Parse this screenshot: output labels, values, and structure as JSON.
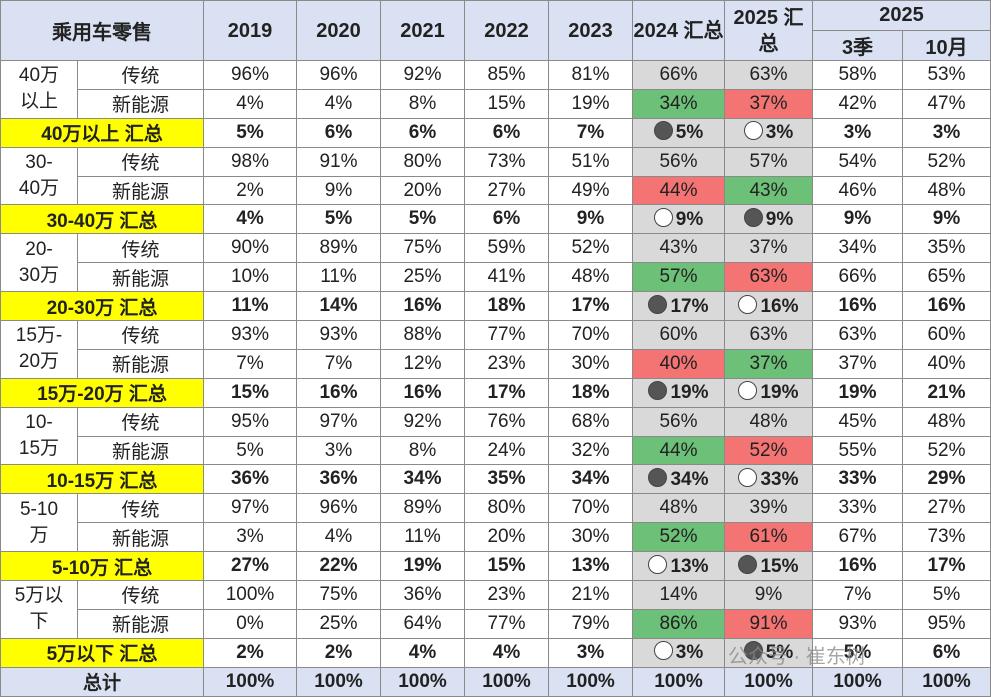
{
  "header": {
    "title": "乘用车零售",
    "columns": [
      "2019",
      "2020",
      "2021",
      "2022",
      "2023",
      "2024 汇总",
      "2025 汇总"
    ],
    "group": "2025",
    "subcolumns": [
      "3季",
      "10月"
    ]
  },
  "groups": [
    {
      "label_lines": [
        "40万",
        "以上"
      ],
      "rows": [
        {
          "type": "传统",
          "cells": [
            "96%",
            "96%",
            "92%",
            "85%",
            "81%",
            "66%",
            "63%",
            "58%",
            "53%"
          ]
        },
        {
          "type": "新能源",
          "cells": [
            "4%",
            "4%",
            "8%",
            "15%",
            "19%",
            "34%",
            "37%",
            "42%",
            "47%"
          ],
          "highlight": [
            "green",
            "red"
          ]
        }
      ],
      "summary": {
        "label": "40万以上 汇总",
        "cells": [
          "5%",
          "6%",
          "6%",
          "6%",
          "7%",
          "5%",
          "3%",
          "3%",
          "3%"
        ],
        "markers": [
          "filled",
          "hollow"
        ]
      }
    },
    {
      "label_lines": [
        "30-",
        "40万"
      ],
      "rows": [
        {
          "type": "传统",
          "cells": [
            "98%",
            "91%",
            "80%",
            "73%",
            "51%",
            "56%",
            "57%",
            "54%",
            "52%"
          ]
        },
        {
          "type": "新能源",
          "cells": [
            "2%",
            "9%",
            "20%",
            "27%",
            "49%",
            "44%",
            "43%",
            "46%",
            "48%"
          ],
          "highlight": [
            "red",
            "green"
          ]
        }
      ],
      "summary": {
        "label": "30-40万 汇总",
        "cells": [
          "4%",
          "5%",
          "5%",
          "6%",
          "9%",
          "9%",
          "9%",
          "9%",
          "9%"
        ],
        "markers": [
          "hollow",
          "filled"
        ]
      }
    },
    {
      "label_lines": [
        "20-",
        "30万"
      ],
      "rows": [
        {
          "type": "传统",
          "cells": [
            "90%",
            "89%",
            "75%",
            "59%",
            "52%",
            "43%",
            "37%",
            "34%",
            "35%"
          ]
        },
        {
          "type": "新能源",
          "cells": [
            "10%",
            "11%",
            "25%",
            "41%",
            "48%",
            "57%",
            "63%",
            "66%",
            "65%"
          ],
          "highlight": [
            "green",
            "red"
          ]
        }
      ],
      "summary": {
        "label": "20-30万 汇总",
        "cells": [
          "11%",
          "14%",
          "16%",
          "18%",
          "17%",
          "17%",
          "16%",
          "16%",
          "16%"
        ],
        "markers": [
          "filled",
          "hollow"
        ]
      }
    },
    {
      "label_lines": [
        "15万-",
        "20万"
      ],
      "rows": [
        {
          "type": "传统",
          "cells": [
            "93%",
            "93%",
            "88%",
            "77%",
            "70%",
            "60%",
            "63%",
            "63%",
            "60%"
          ]
        },
        {
          "type": "新能源",
          "cells": [
            "7%",
            "7%",
            "12%",
            "23%",
            "30%",
            "40%",
            "37%",
            "37%",
            "40%"
          ],
          "highlight": [
            "red",
            "green"
          ]
        }
      ],
      "summary": {
        "label": "15万-20万 汇总",
        "cells": [
          "15%",
          "16%",
          "16%",
          "17%",
          "18%",
          "19%",
          "19%",
          "19%",
          "21%"
        ],
        "markers": [
          "filled",
          "hollow"
        ]
      }
    },
    {
      "label_lines": [
        "10-",
        "15万"
      ],
      "rows": [
        {
          "type": "传统",
          "cells": [
            "95%",
            "97%",
            "92%",
            "76%",
            "68%",
            "56%",
            "48%",
            "45%",
            "48%"
          ]
        },
        {
          "type": "新能源",
          "cells": [
            "5%",
            "3%",
            "8%",
            "24%",
            "32%",
            "44%",
            "52%",
            "55%",
            "52%"
          ],
          "highlight": [
            "green",
            "red"
          ]
        }
      ],
      "summary": {
        "label": "10-15万 汇总",
        "cells": [
          "36%",
          "36%",
          "34%",
          "35%",
          "34%",
          "34%",
          "33%",
          "33%",
          "29%"
        ],
        "markers": [
          "filled",
          "hollow"
        ]
      }
    },
    {
      "label_lines": [
        "5-10",
        "万"
      ],
      "rows": [
        {
          "type": "传统",
          "cells": [
            "97%",
            "96%",
            "89%",
            "80%",
            "70%",
            "48%",
            "39%",
            "33%",
            "27%"
          ]
        },
        {
          "type": "新能源",
          "cells": [
            "3%",
            "4%",
            "11%",
            "20%",
            "30%",
            "52%",
            "61%",
            "67%",
            "73%"
          ],
          "highlight": [
            "green",
            "red"
          ]
        }
      ],
      "summary": {
        "label": "5-10万 汇总",
        "cells": [
          "27%",
          "22%",
          "19%",
          "15%",
          "13%",
          "13%",
          "15%",
          "16%",
          "17%"
        ],
        "markers": [
          "hollow",
          "filled"
        ]
      }
    },
    {
      "label_lines": [
        "5万以",
        "下"
      ],
      "rows": [
        {
          "type": "传统",
          "cells": [
            "100%",
            "75%",
            "36%",
            "23%",
            "21%",
            "14%",
            "9%",
            "7%",
            "5%"
          ]
        },
        {
          "type": "新能源",
          "cells": [
            "0%",
            "25%",
            "64%",
            "77%",
            "79%",
            "86%",
            "91%",
            "93%",
            "95%"
          ],
          "highlight": [
            "green",
            "red"
          ]
        }
      ],
      "summary": {
        "label": "5万以下 汇总",
        "cells": [
          "2%",
          "2%",
          "4%",
          "4%",
          "3%",
          "3%",
          "5%",
          "5%",
          "6%"
        ],
        "markers": [
          "hollow",
          "filled"
        ]
      }
    }
  ],
  "total": {
    "label": "总计",
    "cells": [
      "100%",
      "100%",
      "100%",
      "100%",
      "100%",
      "100%",
      "100%",
      "100%",
      "100%"
    ]
  },
  "watermark": "公众号 · 崔东树"
}
